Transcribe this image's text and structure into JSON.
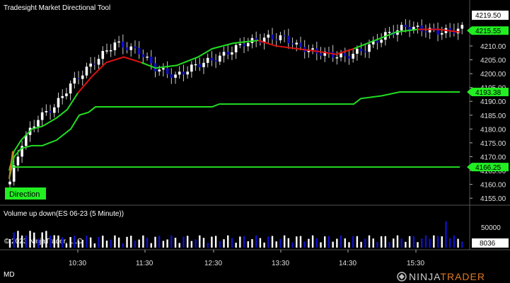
{
  "window": {
    "title": "Tradesight Market Directional Tool",
    "last_price_label": "4219.50",
    "bottom_left_label": "MD",
    "copyright": "© 2023 NinjaTrader, LLC",
    "brand": "NINJATRADER",
    "direction_label": "Direction",
    "volume_panel_title": "Volume up down(ES 06-23 (5 Minute))",
    "volume_axis_label": "50000",
    "volume_last_label": "8036"
  },
  "colors": {
    "background": "#000000",
    "up_candle": "#ffffff",
    "down_candle": "#1010c8",
    "trend_up": "#22dd22",
    "trend_down": "#dd1111",
    "marker_green": "#22ee22",
    "price_tag": "#ffffff",
    "brand_orange": "#e07820"
  },
  "chart_data": {
    "type": "candlestick",
    "x_tick_labels": [
      "10:30",
      "11:30",
      "12:30",
      "13:30",
      "14:30",
      "15:30"
    ],
    "y_tick_labels": [
      "4155.00",
      "4160.00",
      "4165.00",
      "4170.00",
      "4175.00",
      "4180.00",
      "4185.00",
      "4190.00",
      "4195.00",
      "4200.00",
      "4205.00",
      "4210.00"
    ],
    "ylim": [
      4153,
      4222
    ],
    "price_markers": [
      {
        "label": "4215.55",
        "value": 4215.55
      },
      {
        "label": "4193.38",
        "value": 4193.38
      },
      {
        "label": "4166.25",
        "value": 4166.25
      }
    ],
    "volume_ylim": [
      0,
      60000
    ]
  }
}
